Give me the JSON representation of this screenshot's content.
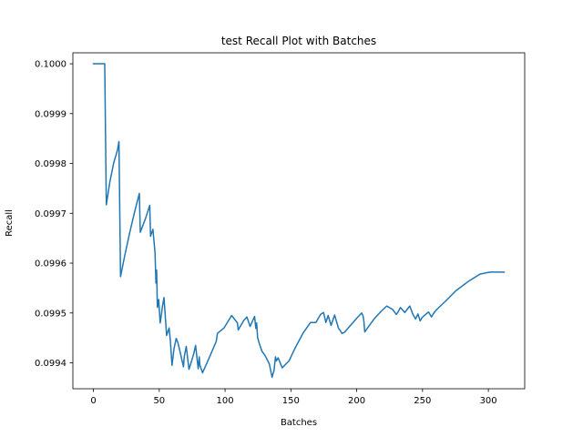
{
  "chart_data": {
    "type": "line",
    "title": "test Recall Plot with Batches",
    "xlabel": "Batches",
    "ylabel": "Recall",
    "xlim": [
      -15.6,
      327.6
    ],
    "ylim": [
      0.099348,
      0.100022
    ],
    "xticks": [
      0,
      50,
      100,
      150,
      200,
      250,
      300
    ],
    "xtick_labels": [
      "0",
      "50",
      "100",
      "150",
      "200",
      "250",
      "300"
    ],
    "yticks": [
      0.0994,
      0.0995,
      0.0996,
      0.0997,
      0.0998,
      0.0999,
      0.1
    ],
    "ytick_labels": [
      "0.0994",
      "0.0995",
      "0.0996",
      "0.0997",
      "0.0998",
      "0.0999",
      "0.1000"
    ],
    "grid": false,
    "series": [
      {
        "color": "#1f77b4",
        "x": [
          0,
          8.6,
          9.8,
          12.5,
          15.4,
          18.3,
          19.4,
          20.6,
          23.7,
          27.3,
          31.3,
          34.9,
          35.6,
          39.5,
          42.8,
          43.4,
          45.2,
          46.8,
          47.5,
          48.0,
          48.6,
          49.6,
          50.7,
          51.7,
          52.5,
          53.6,
          55.6,
          57.5,
          58.4,
          59.7,
          61.2,
          62.9,
          64.2,
          65.5,
          68.4,
          69.0,
          70.5,
          72.6,
          74.7,
          76.2,
          77.6,
          79.6,
          80.4,
          80.8,
          82.9,
          87.6,
          90.7,
          93.3,
          94.2,
          99.2,
          105.0,
          109.4,
          110.0,
          114.2,
          116.6,
          119.0,
          122.4,
          123.4,
          124.0,
          124.7,
          126.2,
          128.1,
          130.3,
          133.6,
          135.7,
          137.2,
          138.3,
          139.0,
          140.3,
          143.4,
          148.6,
          153.3,
          159.1,
          164.9,
          169.0,
          172.5,
          174.8,
          176.6,
          178.3,
          180.5,
          183.2,
          186.2,
          187.5,
          188.8,
          190.6,
          195.6,
          200.2,
          203.8,
          204.8,
          205.4,
          206.1,
          209.3,
          213.5,
          218.4,
          222.8,
          227.3,
          230.1,
          231.4,
          233.2,
          236.5,
          240.3,
          242.7,
          244.7,
          246.5,
          248.2,
          249.7,
          252.3,
          254.6,
          256.8,
          258.1,
          260.4,
          267.6,
          275.5,
          285.7,
          293.6,
          301.1,
          307.4,
          312.0
        ],
        "y": [
          0.1,
          0.1,
          0.099717,
          0.099763,
          0.099801,
          0.099827,
          0.099844,
          0.099573,
          0.099614,
          0.099658,
          0.099703,
          0.09974,
          0.099662,
          0.099689,
          0.099716,
          0.099654,
          0.099668,
          0.099621,
          0.09956,
          0.099586,
          0.099511,
          0.099527,
          0.09948,
          0.099498,
          0.099514,
          0.099531,
          0.099455,
          0.09947,
          0.099446,
          0.099395,
          0.099428,
          0.099449,
          0.09944,
          0.099426,
          0.099392,
          0.099412,
          0.099433,
          0.099387,
          0.099405,
          0.099418,
          0.099435,
          0.099388,
          0.099412,
          0.099396,
          0.09938,
          0.099408,
          0.099427,
          0.099443,
          0.099459,
          0.09947,
          0.099495,
          0.09948,
          0.099466,
          0.099485,
          0.099492,
          0.099473,
          0.099493,
          0.099469,
          0.09948,
          0.099451,
          0.099437,
          0.099423,
          0.099415,
          0.099398,
          0.099371,
          0.099385,
          0.099412,
          0.099404,
          0.09941,
          0.09939,
          0.099404,
          0.09943,
          0.099459,
          0.099481,
          0.099481,
          0.099497,
          0.099501,
          0.099481,
          0.099495,
          0.099475,
          0.099496,
          0.099469,
          0.099465,
          0.099459,
          0.099461,
          0.099476,
          0.09949,
          0.0995,
          0.099494,
          0.099485,
          0.099462,
          0.099474,
          0.099489,
          0.099503,
          0.099514,
          0.099507,
          0.099497,
          0.099502,
          0.099511,
          0.099501,
          0.099514,
          0.099497,
          0.099488,
          0.099498,
          0.099484,
          0.099491,
          0.099497,
          0.099502,
          0.099492,
          0.099498,
          0.099506,
          0.099524,
          0.099545,
          0.099565,
          0.099578,
          0.099582,
          0.099582,
          0.099582
        ]
      }
    ]
  }
}
